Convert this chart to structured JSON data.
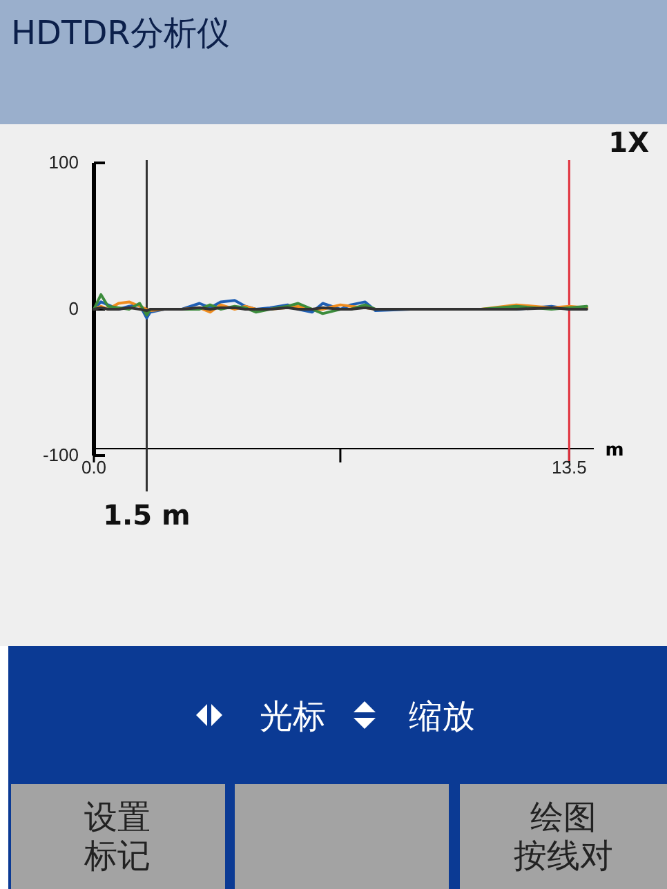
{
  "chart_data": {
    "type": "line",
    "title": "HDTDR分析仪",
    "x": [
      0,
      0.2,
      0.4,
      0.7,
      1.0,
      1.3,
      1.5,
      1.6,
      2.0,
      2.5,
      3.0,
      3.3,
      3.6,
      4.0,
      4.3,
      4.6,
      5.0,
      5.5,
      5.8,
      6.2,
      6.5,
      7.0,
      7.3,
      7.7,
      8.0,
      9.0,
      10.0,
      11.0,
      12.0,
      13.0,
      13.5,
      14.0
    ],
    "series": [
      {
        "color": "#1f5fb4",
        "values": [
          0,
          5,
          3,
          0,
          2,
          3,
          -6,
          -2,
          0,
          0,
          4,
          1,
          5,
          6,
          2,
          0,
          1,
          3,
          0,
          -2,
          4,
          0,
          3,
          5,
          -1,
          0,
          0,
          0,
          0,
          2,
          0,
          1
        ]
      },
      {
        "color": "#f08c1e",
        "values": [
          0,
          2,
          0,
          4,
          5,
          2,
          0,
          -1,
          0,
          0,
          1,
          -2,
          3,
          0,
          2,
          0,
          0,
          1,
          2,
          0,
          0,
          3,
          2,
          1,
          0,
          0,
          0,
          0,
          3,
          1,
          2,
          1
        ]
      },
      {
        "color": "#3c8c3c",
        "values": [
          0,
          10,
          2,
          1,
          0,
          4,
          -4,
          0,
          0,
          0,
          0,
          3,
          0,
          2,
          1,
          -2,
          0,
          2,
          4,
          0,
          -3,
          0,
          0,
          3,
          0,
          0,
          0,
          0,
          2,
          0,
          1,
          2
        ]
      },
      {
        "color": "#333333",
        "values": [
          0,
          1,
          0,
          0,
          1,
          0,
          -1,
          0,
          0,
          0,
          1,
          0,
          1,
          1,
          0,
          0,
          0,
          1,
          0,
          0,
          1,
          0,
          0,
          1,
          0,
          0,
          0,
          0,
          0,
          1,
          0,
          0
        ]
      }
    ],
    "xlim": [
      0,
      14.2
    ],
    "xticks": [
      {
        "value": 0,
        "label": "0.0"
      },
      {
        "value": 7,
        "label": null
      },
      13.5
    ],
    "ylim": [
      -100,
      100
    ],
    "yticks": [
      100,
      0,
      -100
    ],
    "xlabel": "m",
    "ref_lines": [
      {
        "axis": "x",
        "value": 1.5,
        "label": "1.5 m",
        "color": "#333333"
      },
      {
        "axis": "x",
        "value": 13.5,
        "color": "#e0303c"
      }
    ],
    "annotations": [
      "1X",
      "光标",
      "缩放",
      "设置",
      "标记",
      "绘图",
      "按线对"
    ]
  }
}
